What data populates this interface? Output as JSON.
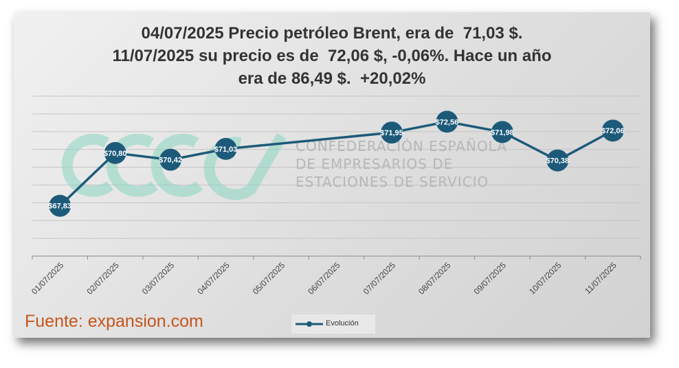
{
  "title_lines": [
    "04/07/2025 Precio petróleo Brent, era de  71,03 $.",
    "11/07/2025 su precio es de  72,06 $, -0,06%. Hace un año",
    "era de 86,49 $.  +20,02%"
  ],
  "source": "Fuente: expansion.com",
  "watermark": {
    "lines": [
      "CONFEDERACIÓN ESPAÑOLA",
      "DE EMPRESARIOS DE",
      "ESTACIONES DE SERVICIO"
    ]
  },
  "colors": {
    "series": "#1d5a7a",
    "source": "#c5551b",
    "logo": "#8ad6c0"
  },
  "chart_data": {
    "type": "line",
    "categories": [
      "01/07/2025",
      "02/07/2025",
      "03/07/2025",
      "04/07/2025",
      "05/07/2025",
      "06/07/2025",
      "07/07/2025",
      "08/07/2025",
      "09/07/2025",
      "10/07/2025",
      "11/07/2025"
    ],
    "series": [
      {
        "name": "Evolución",
        "values": [
          67.83,
          70.8,
          70.42,
          71.03,
          null,
          null,
          71.95,
          72.56,
          71.98,
          70.38,
          72.06
        ],
        "labels": [
          "$67,83",
          "$70,80",
          "$70,42",
          "$71,03",
          "",
          "",
          "$71,95",
          "$72,56",
          "$71,98",
          "$70,38",
          "$72,06"
        ]
      }
    ],
    "ylim": [
      65,
      74
    ],
    "grid": true,
    "legend": "bottom"
  }
}
